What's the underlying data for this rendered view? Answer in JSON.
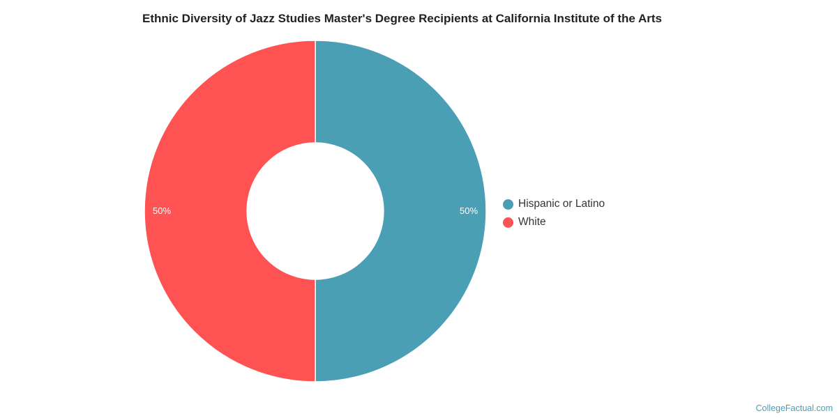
{
  "chart_data": {
    "type": "pie",
    "title": "Ethnic Diversity of Jazz Studies Master's Degree Recipients at California Institute of the Arts",
    "donut": true,
    "legend_position": "right",
    "slices": [
      {
        "name": "Hispanic or Latino",
        "value": 50,
        "label": "50%",
        "color": "#4a9fb5"
      },
      {
        "name": "White",
        "value": 50,
        "label": "50%",
        "color": "#ff5253"
      }
    ]
  },
  "watermark": "CollegeFactual.com"
}
